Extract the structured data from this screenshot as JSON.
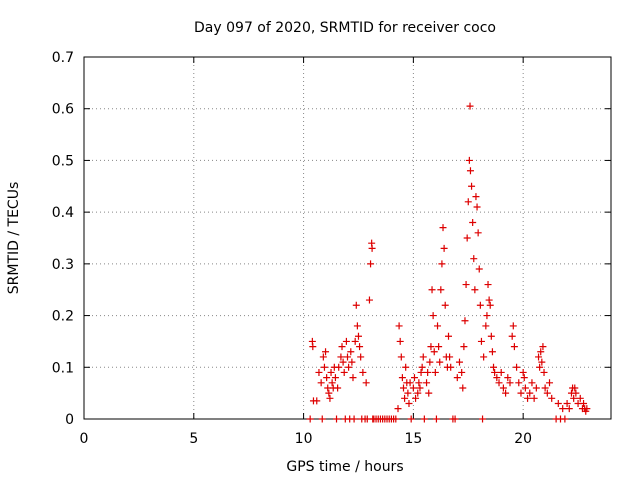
{
  "chart_data": {
    "type": "scatter",
    "title": "Day 097 of 2020, SRMTID for receiver coco",
    "xlabel": "GPS time / hours",
    "ylabel": "SRMTID / TECUs",
    "xlim": [
      0,
      24
    ],
    "ylim": [
      0,
      0.7
    ],
    "xticks": [
      "0",
      "5",
      "10",
      "15",
      "20"
    ],
    "xtick_values": [
      0,
      5,
      10,
      15,
      20
    ],
    "yticks": [
      "0",
      "0.1",
      "0.2",
      "0.3",
      "0.4",
      "0.5",
      "0.6",
      "0.7"
    ],
    "ytick_values": [
      0,
      0.1,
      0.2,
      0.3,
      0.4,
      0.5,
      0.6,
      0.7
    ],
    "grid": true,
    "marker": "+",
    "series": [
      {
        "name": "SRMTID",
        "color": "#dd0000",
        "points": [
          [
            10.3,
            0.0
          ],
          [
            10.4,
            0.15
          ],
          [
            10.42,
            0.14
          ],
          [
            10.45,
            0.035
          ],
          [
            10.6,
            0.035
          ],
          [
            10.7,
            0.09
          ],
          [
            10.8,
            0.07
          ],
          [
            10.85,
            0.0
          ],
          [
            10.9,
            0.12
          ],
          [
            10.95,
            0.1
          ],
          [
            11.0,
            0.13
          ],
          [
            11.05,
            0.08
          ],
          [
            11.1,
            0.06
          ],
          [
            11.15,
            0.05
          ],
          [
            11.2,
            0.04
          ],
          [
            11.25,
            0.09
          ],
          [
            11.3,
            0.07
          ],
          [
            11.35,
            0.06
          ],
          [
            11.4,
            0.1
          ],
          [
            11.45,
            0.08
          ],
          [
            11.5,
            0.0
          ],
          [
            11.55,
            0.06
          ],
          [
            11.6,
            0.1
          ],
          [
            11.7,
            0.12
          ],
          [
            11.75,
            0.14
          ],
          [
            11.8,
            0.11
          ],
          [
            11.85,
            0.09
          ],
          [
            11.9,
            0.0
          ],
          [
            11.95,
            0.15
          ],
          [
            12.0,
            0.12
          ],
          [
            12.05,
            0.1
          ],
          [
            12.1,
            0.0
          ],
          [
            12.15,
            0.13
          ],
          [
            12.2,
            0.11
          ],
          [
            12.25,
            0.08
          ],
          [
            12.3,
            0.0
          ],
          [
            12.35,
            0.15
          ],
          [
            12.4,
            0.22
          ],
          [
            12.45,
            0.18
          ],
          [
            12.5,
            0.16
          ],
          [
            12.55,
            0.14
          ],
          [
            12.6,
            0.12
          ],
          [
            12.65,
            0.0
          ],
          [
            12.7,
            0.09
          ],
          [
            12.8,
            0.0
          ],
          [
            12.85,
            0.07
          ],
          [
            12.9,
            0.0
          ],
          [
            13.0,
            0.23
          ],
          [
            13.05,
            0.3
          ],
          [
            13.1,
            0.34
          ],
          [
            13.12,
            0.33
          ],
          [
            13.15,
            0.0
          ],
          [
            13.2,
            0.0
          ],
          [
            13.3,
            0.0
          ],
          [
            13.4,
            0.0
          ],
          [
            13.5,
            0.0
          ],
          [
            13.6,
            0.0
          ],
          [
            13.7,
            0.0
          ],
          [
            13.8,
            0.0
          ],
          [
            13.9,
            0.0
          ],
          [
            14.0,
            0.0
          ],
          [
            14.1,
            0.0
          ],
          [
            14.2,
            0.0
          ],
          [
            14.3,
            0.02
          ],
          [
            14.35,
            0.18
          ],
          [
            14.4,
            0.15
          ],
          [
            14.45,
            0.12
          ],
          [
            14.5,
            0.08
          ],
          [
            14.55,
            0.06
          ],
          [
            14.6,
            0.04
          ],
          [
            14.65,
            0.1
          ],
          [
            14.7,
            0.07
          ],
          [
            14.75,
            0.05
          ],
          [
            14.8,
            0.03
          ],
          [
            14.85,
            0.07
          ],
          [
            14.9,
            0.0
          ],
          [
            15.0,
            0.06
          ],
          [
            15.05,
            0.08
          ],
          [
            15.1,
            0.04
          ],
          [
            15.2,
            0.05
          ],
          [
            15.25,
            0.07
          ],
          [
            15.3,
            0.06
          ],
          [
            15.35,
            0.09
          ],
          [
            15.4,
            0.1
          ],
          [
            15.45,
            0.12
          ],
          [
            15.5,
            0.0
          ],
          [
            15.6,
            0.07
          ],
          [
            15.65,
            0.09
          ],
          [
            15.7,
            0.05
          ],
          [
            15.75,
            0.11
          ],
          [
            15.8,
            0.14
          ],
          [
            15.85,
            0.25
          ],
          [
            15.9,
            0.2
          ],
          [
            15.95,
            0.13
          ],
          [
            16.0,
            0.09
          ],
          [
            16.05,
            0.0
          ],
          [
            16.1,
            0.18
          ],
          [
            16.15,
            0.14
          ],
          [
            16.2,
            0.11
          ],
          [
            16.25,
            0.25
          ],
          [
            16.3,
            0.3
          ],
          [
            16.35,
            0.37
          ],
          [
            16.4,
            0.33
          ],
          [
            16.45,
            0.22
          ],
          [
            16.5,
            0.12
          ],
          [
            16.55,
            0.1
          ],
          [
            16.6,
            0.16
          ],
          [
            16.65,
            0.12
          ],
          [
            16.7,
            0.1
          ],
          [
            16.8,
            0.0
          ],
          [
            16.9,
            0.0
          ],
          [
            17.0,
            0.08
          ],
          [
            17.1,
            0.11
          ],
          [
            17.2,
            0.09
          ],
          [
            17.25,
            0.06
          ],
          [
            17.3,
            0.14
          ],
          [
            17.35,
            0.19
          ],
          [
            17.4,
            0.26
          ],
          [
            17.45,
            0.35
          ],
          [
            17.5,
            0.42
          ],
          [
            17.55,
            0.5
          ],
          [
            17.58,
            0.605
          ],
          [
            17.6,
            0.48
          ],
          [
            17.65,
            0.45
          ],
          [
            17.7,
            0.38
          ],
          [
            17.75,
            0.31
          ],
          [
            17.8,
            0.25
          ],
          [
            17.85,
            0.43
          ],
          [
            17.9,
            0.41
          ],
          [
            17.95,
            0.36
          ],
          [
            18.0,
            0.29
          ],
          [
            18.05,
            0.22
          ],
          [
            18.1,
            0.15
          ],
          [
            18.15,
            0.0
          ],
          [
            18.2,
            0.12
          ],
          [
            18.3,
            0.18
          ],
          [
            18.35,
            0.2
          ],
          [
            18.4,
            0.26
          ],
          [
            18.45,
            0.23
          ],
          [
            18.5,
            0.22
          ],
          [
            18.55,
            0.16
          ],
          [
            18.6,
            0.13
          ],
          [
            18.65,
            0.1
          ],
          [
            18.7,
            0.09
          ],
          [
            18.8,
            0.08
          ],
          [
            18.9,
            0.07
          ],
          [
            19.0,
            0.09
          ],
          [
            19.1,
            0.06
          ],
          [
            19.2,
            0.05
          ],
          [
            19.3,
            0.08
          ],
          [
            19.4,
            0.07
          ],
          [
            19.5,
            0.16
          ],
          [
            19.55,
            0.18
          ],
          [
            19.6,
            0.14
          ],
          [
            19.7,
            0.1
          ],
          [
            19.8,
            0.07
          ],
          [
            19.9,
            0.05
          ],
          [
            20.0,
            0.09
          ],
          [
            20.05,
            0.08
          ],
          [
            20.1,
            0.06
          ],
          [
            20.2,
            0.04
          ],
          [
            20.3,
            0.05
          ],
          [
            20.4,
            0.07
          ],
          [
            20.5,
            0.04
          ],
          [
            20.6,
            0.06
          ],
          [
            20.7,
            0.12
          ],
          [
            20.75,
            0.1
          ],
          [
            20.8,
            0.13
          ],
          [
            20.85,
            0.11
          ],
          [
            20.9,
            0.14
          ],
          [
            20.95,
            0.09
          ],
          [
            21.0,
            0.06
          ],
          [
            21.1,
            0.05
          ],
          [
            21.2,
            0.07
          ],
          [
            21.3,
            0.04
          ],
          [
            21.5,
            0.0
          ],
          [
            21.6,
            0.03
          ],
          [
            21.7,
            0.0
          ],
          [
            21.8,
            0.02
          ],
          [
            21.9,
            0.0
          ],
          [
            22.0,
            0.03
          ],
          [
            22.1,
            0.02
          ],
          [
            22.2,
            0.05
          ],
          [
            22.25,
            0.06
          ],
          [
            22.3,
            0.04
          ],
          [
            22.35,
            0.06
          ],
          [
            22.4,
            0.05
          ],
          [
            22.5,
            0.03
          ],
          [
            22.6,
            0.04
          ],
          [
            22.7,
            0.02
          ],
          [
            22.75,
            0.03
          ],
          [
            22.8,
            0.02
          ],
          [
            22.85,
            0.015
          ],
          [
            22.9,
            0.02
          ]
        ]
      }
    ]
  }
}
